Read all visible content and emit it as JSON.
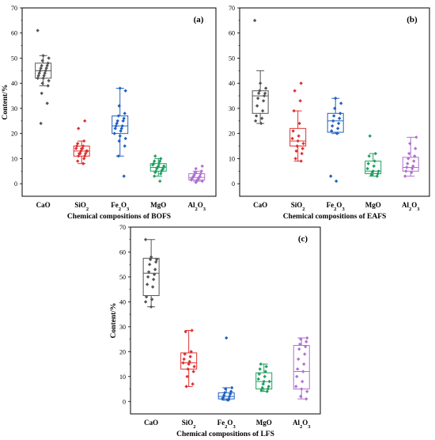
{
  "chart_data": [
    {
      "type": "box",
      "panel_label": "(a)",
      "xlabel": "Chemical compositions of BOFS",
      "ylabel": "Content/%",
      "ylim": [
        -5,
        70
      ],
      "yticks": [
        0,
        10,
        20,
        30,
        40,
        50,
        60,
        70
      ],
      "categories": [
        {
          "base": "CaO",
          "sub": ""
        },
        {
          "base": "SiO",
          "sub": "2"
        },
        {
          "base": "Fe",
          "sub": "2",
          "base2": "O",
          "sub2": "3"
        },
        {
          "base": "MgO",
          "sub": ""
        },
        {
          "base": "Al",
          "sub": "2",
          "base2": "O",
          "sub2": "3"
        }
      ],
      "series": [
        {
          "color": "#555555",
          "whisker_low": 39,
          "q1": 42,
          "median": 45,
          "q3": 48,
          "whisker_high": 51,
          "points": [
            61,
            51,
            50,
            49,
            48,
            47,
            47,
            46,
            46,
            45,
            45,
            44,
            44,
            43,
            43,
            42,
            42,
            41,
            40,
            39,
            36,
            32,
            24
          ]
        },
        {
          "color": "#e03030",
          "whisker_low": 8,
          "q1": 11,
          "median": 13,
          "q3": 15,
          "whisker_high": 17,
          "points": [
            25,
            22,
            17,
            16,
            15,
            15,
            14,
            14,
            14,
            13,
            13,
            13,
            12,
            12,
            12,
            11,
            11,
            10,
            9,
            8
          ]
        },
        {
          "color": "#2060c0",
          "whisker_low": 11,
          "q1": 20,
          "median": 23,
          "q3": 27,
          "whisker_high": 38,
          "points": [
            38,
            37,
            31,
            28,
            27,
            26,
            25,
            25,
            24,
            23,
            23,
            22,
            22,
            21,
            20,
            19,
            18,
            17,
            15,
            11,
            3
          ]
        },
        {
          "color": "#20a060",
          "whisker_low": 3,
          "q1": 5,
          "median": 6.5,
          "q3": 8,
          "whisker_high": 10,
          "points": [
            11,
            10,
            9,
            9,
            8,
            8,
            7.5,
            7,
            7,
            6.5,
            6,
            6,
            5.5,
            5,
            5,
            4.5,
            4,
            3,
            1
          ]
        },
        {
          "color": "#b070d0",
          "whisker_low": 1,
          "q1": 1.5,
          "median": 2.5,
          "q3": 4,
          "whisker_high": 5,
          "points": [
            7,
            6,
            5,
            4.5,
            4,
            3.5,
            3,
            3,
            2.5,
            2.5,
            2,
            2,
            1.5,
            1.5,
            1,
            1,
            0.5
          ]
        }
      ]
    },
    {
      "type": "box",
      "panel_label": "(b)",
      "xlabel": "Chemical compositions of EAFS",
      "ylabel": "",
      "ylim": [
        -5,
        70
      ],
      "yticks": [
        0,
        10,
        20,
        30,
        40,
        50,
        60,
        70
      ],
      "categories": [
        {
          "base": "CaO",
          "sub": ""
        },
        {
          "base": "SiO",
          "sub": "2"
        },
        {
          "base": "Fe",
          "sub": "2",
          "base2": "O",
          "sub2": "3"
        },
        {
          "base": "MgO",
          "sub": ""
        },
        {
          "base": "Al",
          "sub": "2",
          "base2": "O",
          "sub2": "3"
        }
      ],
      "series": [
        {
          "color": "#555555",
          "whisker_low": 24,
          "q1": 28,
          "median": 35,
          "q3": 37,
          "whisker_high": 45,
          "points": [
            65,
            40,
            38,
            37,
            36,
            36,
            35,
            34,
            33,
            31,
            29,
            27,
            26,
            25,
            24
          ]
        },
        {
          "color": "#e03030",
          "whisker_low": 9,
          "q1": 15,
          "median": 17,
          "q3": 22,
          "whisker_high": 29,
          "points": [
            40,
            37,
            33,
            29,
            24,
            21,
            19,
            18,
            17,
            16,
            15,
            14,
            13,
            12,
            10,
            9
          ]
        },
        {
          "color": "#2060c0",
          "whisker_low": 20,
          "q1": 20.5,
          "median": 25,
          "q3": 28,
          "whisker_high": 34,
          "points": [
            34,
            32,
            30,
            28,
            27,
            26,
            25,
            24,
            23,
            22,
            21,
            20,
            3,
            1
          ]
        },
        {
          "color": "#20a060",
          "whisker_low": 3,
          "q1": 4,
          "median": 5,
          "q3": 9,
          "whisker_high": 12,
          "points": [
            19,
            12,
            11,
            9,
            8,
            7,
            6,
            5,
            5,
            4.5,
            4,
            3.5,
            3
          ]
        },
        {
          "color": "#b070d0",
          "whisker_low": 3,
          "q1": 5,
          "median": 6.5,
          "q3": 10.5,
          "whisker_high": 18.5,
          "points": [
            18.5,
            16,
            14,
            12,
            11,
            10,
            9,
            8,
            7,
            6.5,
            6,
            5,
            4.5,
            3
          ]
        }
      ]
    },
    {
      "type": "box",
      "panel_label": "(c)",
      "xlabel": "Chemical compositions of LFS",
      "ylabel": "Content/%",
      "ylim": [
        -5,
        70
      ],
      "yticks": [
        0,
        10,
        20,
        30,
        40,
        50,
        60,
        70
      ],
      "categories": [
        {
          "base": "CaO",
          "sub": ""
        },
        {
          "base": "SiO",
          "sub": "2"
        },
        {
          "base": "Fe",
          "sub": "2",
          "base2": "O",
          "sub2": "3"
        },
        {
          "base": "MgO",
          "sub": ""
        },
        {
          "base": "Al",
          "sub": "2",
          "base2": "O",
          "sub2": "3"
        }
      ],
      "series": [
        {
          "color": "#555555",
          "whisker_low": 38,
          "q1": 42.5,
          "median": 51.5,
          "q3": 57.5,
          "whisker_high": 65,
          "points": [
            65,
            58,
            57,
            57,
            56,
            55,
            53,
            52,
            51,
            50,
            49,
            47,
            46,
            42,
            41,
            40,
            38
          ]
        },
        {
          "color": "#e03030",
          "whisker_low": 6,
          "q1": 13,
          "median": 15.5,
          "q3": 19.5,
          "whisker_high": 28.5,
          "points": [
            28.5,
            28,
            20,
            19,
            18,
            17,
            16,
            15.5,
            15,
            14,
            13,
            12,
            10,
            7,
            6
          ]
        },
        {
          "color": "#2060c0",
          "whisker_low": 0.5,
          "q1": 1,
          "median": 2,
          "q3": 3.5,
          "whisker_high": 5.5,
          "points": [
            25.5,
            5.5,
            5,
            4,
            3.5,
            3,
            2.5,
            2,
            1.5,
            1,
            1,
            0.5
          ]
        },
        {
          "color": "#20a060",
          "whisker_low": 4,
          "q1": 5,
          "median": 8,
          "q3": 11.5,
          "whisker_high": 15,
          "points": [
            15,
            14,
            13,
            12,
            11,
            10,
            9,
            8,
            8,
            7,
            6,
            5.5,
            5,
            4.5,
            4
          ]
        },
        {
          "color": "#b070d0",
          "whisker_low": 1,
          "q1": 5,
          "median": 12,
          "q3": 22.5,
          "whisker_high": 25.5,
          "points": [
            25.5,
            25,
            24,
            23,
            22,
            21,
            19,
            17,
            15,
            13,
            12,
            10,
            8,
            6,
            5,
            4,
            2,
            1
          ]
        }
      ]
    }
  ]
}
